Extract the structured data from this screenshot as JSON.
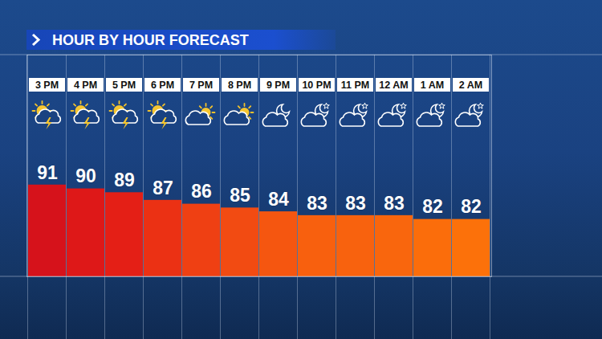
{
  "chart_data": {
    "type": "bar",
    "title": "HOUR BY HOUR FORECAST",
    "categories": [
      "3 PM",
      "4 PM",
      "5 PM",
      "6 PM",
      "7 PM",
      "8 PM",
      "9 PM",
      "10 PM",
      "11 PM",
      "12 AM",
      "1 AM",
      "2 AM"
    ],
    "values": [
      91,
      90,
      89,
      87,
      86,
      85,
      84,
      83,
      83,
      83,
      82,
      82
    ],
    "colors": [
      "#d6121b",
      "#de1818",
      "#e41f16",
      "#eb3114",
      "#ef4013",
      "#f24b12",
      "#f55610",
      "#f8600e",
      "#f8620e",
      "#f9660d",
      "#fb6d0b",
      "#fc710a"
    ],
    "ylim": [
      67,
      125
    ],
    "yticks": [],
    "data_labels": true,
    "tick_labels": "x"
  }
}
